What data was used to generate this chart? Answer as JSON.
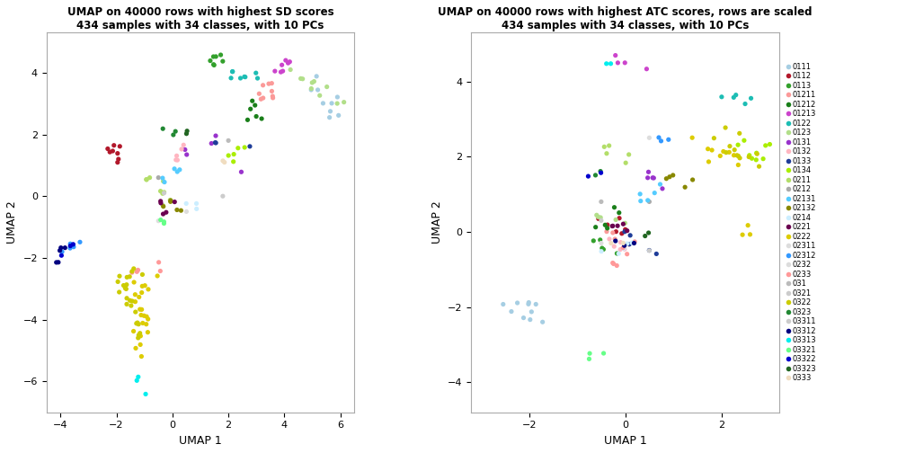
{
  "title1": "UMAP on 40000 rows with highest SD scores\n434 samples with 34 classes, with 10 PCs",
  "title2": "UMAP on 40000 rows with highest ATC scores, rows are scaled\n434 samples with 34 classes, with 10 PCs",
  "xlabel": "UMAP 1",
  "ylabel": "UMAP 2",
  "classes": [
    "0111",
    "0112",
    "0113",
    "01211",
    "01212",
    "01213",
    "0122",
    "0123",
    "0131",
    "0132",
    "0133",
    "0134",
    "0211",
    "0212",
    "02131",
    "02132",
    "0214",
    "0221",
    "0222",
    "02311",
    "02312",
    "0232",
    "0233",
    "031",
    "0321",
    "0322",
    "0323",
    "03311",
    "03312",
    "03313",
    "03321",
    "03322",
    "03323",
    "0333"
  ],
  "class_colors": {
    "0111": "#a6cee3",
    "0112": "#b2182b",
    "0113": "#33a02c",
    "01211": "#fb9a99",
    "01212": "#1a7f1a",
    "01213": "#cc44cc",
    "0122": "#1dbdb4",
    "0123": "#b2df8a",
    "0131": "#9933cc",
    "0132": "#ffb6c1",
    "0133": "#1f3d99",
    "0134": "#aaee00",
    "0211": "#b3de69",
    "0212": "#aaaaaa",
    "02131": "#55ccff",
    "02132": "#888800",
    "0214": "#cceeff",
    "0221": "#6a0050",
    "0222": "#ddcc00",
    "02311": "#dddddd",
    "02312": "#3399ff",
    "0232": "#dddddd",
    "0233": "#ff9999",
    "031": "#bbbbbb",
    "0321": "#cccccc",
    "0322": "#cccc00",
    "0323": "#228833",
    "03311": "#cccccc",
    "03312": "#000080",
    "03313": "#00eeee",
    "03321": "#66ff88",
    "03322": "#0000cd",
    "03323": "#226622",
    "0333": "#f0ddc0"
  },
  "xlim1": [
    -4.5,
    6.5
  ],
  "ylim1": [
    -7.0,
    5.3
  ],
  "xlim2": [
    -3.2,
    3.2
  ],
  "ylim2": [
    -4.8,
    5.3
  ],
  "xticks1": [
    -4,
    -2,
    0,
    2,
    4,
    6
  ],
  "yticks1": [
    -6,
    -4,
    -2,
    0,
    2,
    4
  ],
  "xticks2": [
    -2,
    0,
    2
  ],
  "yticks2": [
    -4,
    -2,
    0,
    2,
    4
  ],
  "point_size": 14
}
